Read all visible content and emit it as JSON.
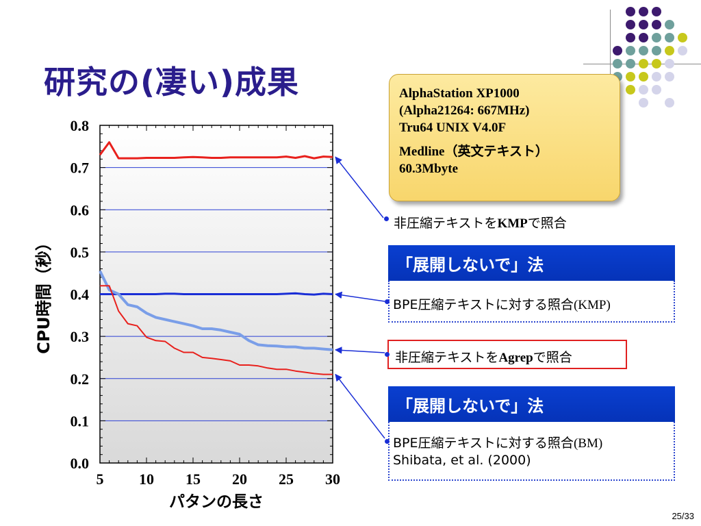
{
  "slide": {
    "title": "研究の(凄い)成果",
    "page_number": "25/33"
  },
  "spec_box": {
    "line1": "AlphaStation XP1000",
    "line2": "(Alpha21264: 667MHz)",
    "line3": "Tru64 UNIX V4.0F",
    "line4": "Medline（英文テキスト）",
    "line5": "60.3Mbyte"
  },
  "annotations": {
    "kmp_uncompressed_pre": "非圧縮テキストを",
    "kmp_uncompressed_bold": "KMP",
    "kmp_uncompressed_post": "で照合",
    "section1_header": "「展開しないで」法",
    "bpe_kmp_pre": "BPE圧縮テキストに対する照合",
    "bpe_kmp_paren": "(KMP)",
    "agrep_pre": "非圧縮テキストを",
    "agrep_bold": "Agrep",
    "agrep_post": "で照合",
    "section2_header": "「展開しないで」法",
    "bpe_bm_pre": "BPE圧縮テキストに対する照合",
    "bpe_bm_paren": "(BM)",
    "citation": "Shibata, et al. (2000)"
  },
  "colors": {
    "title": "#2a1d8c",
    "red_series": "#e8201c",
    "blue_series": "#1a2ed6",
    "lightblue_series": "#7a9ee8",
    "header_blue": "#0533b8",
    "spec_box": "#f8d66c"
  },
  "chart_data": {
    "type": "line",
    "xlabel": "パタンの長さ",
    "ylabel": "CPU時間（秒）",
    "xlim": [
      5,
      30
    ],
    "ylim": [
      0.0,
      0.8
    ],
    "x_ticks": [
      "5",
      "10",
      "15",
      "20",
      "25",
      "30"
    ],
    "y_ticks": [
      "0.0",
      "0.1",
      "0.2",
      "0.3",
      "0.4",
      "0.5",
      "0.6",
      "0.7",
      "0.8"
    ],
    "grid": "horizontal",
    "series": [
      {
        "color": "#e8201c",
        "width": 3,
        "x": [
          5,
          6,
          7,
          8,
          9,
          10,
          11,
          12,
          13,
          14,
          15,
          16,
          17,
          18,
          19,
          20,
          21,
          22,
          23,
          24,
          25,
          26,
          27,
          28,
          29,
          30
        ],
        "y": [
          0.73,
          0.76,
          0.722,
          0.722,
          0.722,
          0.723,
          0.723,
          0.723,
          0.723,
          0.724,
          0.725,
          0.724,
          0.723,
          0.723,
          0.724,
          0.724,
          0.724,
          0.724,
          0.724,
          0.724,
          0.726,
          0.723,
          0.727,
          0.722,
          0.726,
          0.725
        ]
      },
      {
        "color": "#1a2ed6",
        "width": 3,
        "x": [
          5,
          6,
          7,
          8,
          9,
          10,
          11,
          12,
          13,
          14,
          15,
          16,
          17,
          18,
          19,
          20,
          21,
          22,
          23,
          24,
          25,
          26,
          27,
          28,
          29,
          30
        ],
        "y": [
          0.4,
          0.4,
          0.4,
          0.4,
          0.4,
          0.4,
          0.4,
          0.401,
          0.401,
          0.4,
          0.4,
          0.4,
          0.4,
          0.4,
          0.4,
          0.4,
          0.4,
          0.4,
          0.4,
          0.4,
          0.401,
          0.402,
          0.4,
          0.399,
          0.401,
          0.4
        ]
      },
      {
        "color": "#7a9ee8",
        "width": 4,
        "x": [
          5,
          6,
          7,
          8,
          9,
          10,
          11,
          12,
          13,
          14,
          15,
          16,
          17,
          18,
          19,
          20,
          21,
          22,
          23,
          24,
          25,
          26,
          27,
          28,
          29,
          30
        ],
        "y": [
          0.455,
          0.41,
          0.4,
          0.375,
          0.37,
          0.355,
          0.345,
          0.34,
          0.335,
          0.33,
          0.325,
          0.318,
          0.318,
          0.315,
          0.31,
          0.305,
          0.29,
          0.28,
          0.278,
          0.277,
          0.275,
          0.275,
          0.272,
          0.272,
          0.27,
          0.268
        ]
      },
      {
        "color": "#e8201c",
        "width": 2,
        "x": [
          5,
          6,
          7,
          8,
          9,
          10,
          11,
          12,
          13,
          14,
          15,
          16,
          17,
          18,
          19,
          20,
          21,
          22,
          23,
          24,
          25,
          26,
          27,
          28,
          29,
          30
        ],
        "y": [
          0.42,
          0.42,
          0.36,
          0.33,
          0.325,
          0.298,
          0.29,
          0.288,
          0.272,
          0.262,
          0.262,
          0.25,
          0.248,
          0.245,
          0.242,
          0.232,
          0.232,
          0.23,
          0.225,
          0.222,
          0.222,
          0.218,
          0.215,
          0.212,
          0.21,
          0.21
        ]
      }
    ]
  }
}
